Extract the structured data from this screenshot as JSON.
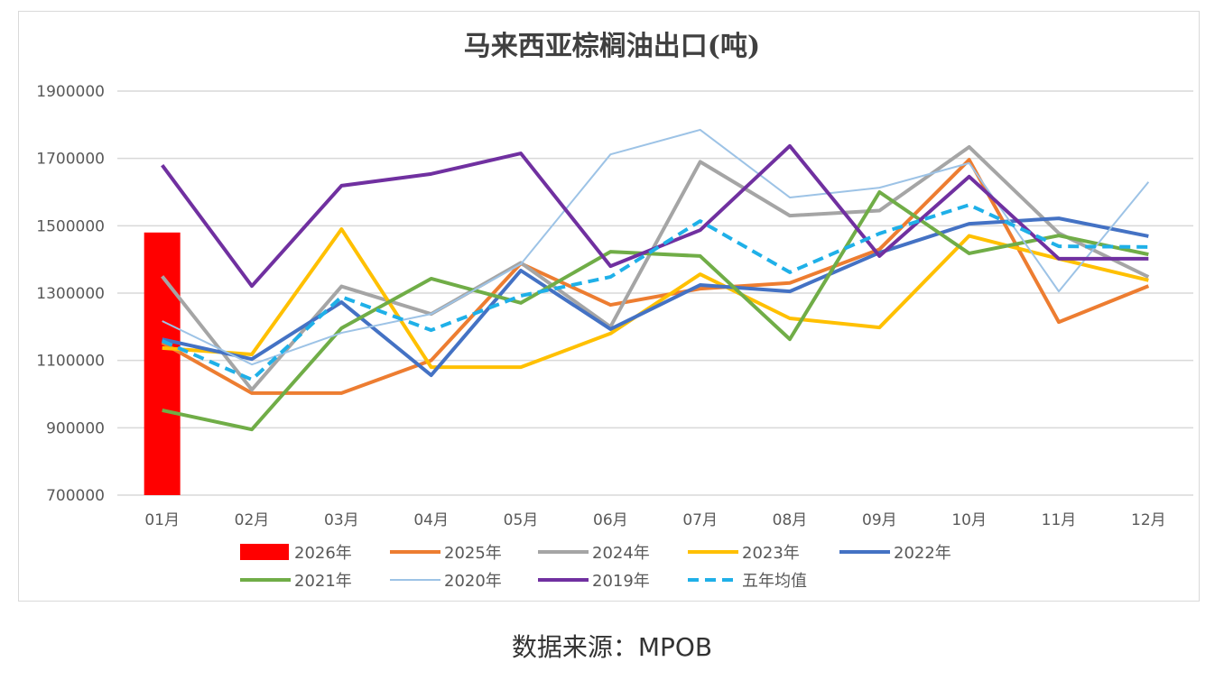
{
  "chart_data": {
    "type": "line",
    "title": "马来西亚棕榈油出口(吨)",
    "xlabel": "",
    "ylabel": "",
    "ylim": [
      700000,
      1900000
    ],
    "yticks": [
      700000,
      900000,
      1100000,
      1300000,
      1500000,
      1700000,
      1900000
    ],
    "ytick_labels": [
      "700000",
      "900000",
      "1100000",
      "1300000",
      "1500000",
      "1700000",
      "1900000"
    ],
    "categories": [
      "01月",
      "02月",
      "03月",
      "04月",
      "05月",
      "06月",
      "07月",
      "08月",
      "09月",
      "10月",
      "11月",
      "12月"
    ],
    "grid": true,
    "legend_position": "bottom",
    "series": [
      {
        "name": "2026年",
        "kind": "bar",
        "color": "#ff0000",
        "values": [
          1480000,
          null,
          null,
          null,
          null,
          null,
          null,
          null,
          null,
          null,
          null,
          null
        ]
      },
      {
        "name": "2025年",
        "kind": "line",
        "color": "#ed7d31",
        "width": 4,
        "values": [
          1153000,
          1003000,
          1003000,
          1100000,
          1388000,
          1265000,
          1313000,
          1330000,
          1430000,
          1696000,
          1214000,
          1321000
        ]
      },
      {
        "name": "2024年",
        "kind": "line",
        "color": "#a5a5a5",
        "width": 4,
        "values": [
          1350000,
          1013000,
          1320000,
          1238000,
          1390000,
          1200000,
          1690000,
          1530000,
          1545000,
          1734000,
          1478000,
          1348000
        ]
      },
      {
        "name": "2023年",
        "kind": "line",
        "color": "#ffc000",
        "width": 4,
        "values": [
          1137000,
          1118000,
          1490000,
          1080000,
          1080000,
          1180000,
          1356000,
          1225000,
          1198000,
          1470000,
          1402000,
          1338000
        ]
      },
      {
        "name": "2022年",
        "kind": "line",
        "color": "#4472c4",
        "width": 4,
        "values": [
          1163000,
          1104000,
          1273000,
          1056000,
          1367000,
          1193000,
          1324000,
          1305000,
          1420000,
          1506000,
          1522000,
          1469000
        ]
      },
      {
        "name": "2021年",
        "kind": "line",
        "color": "#70ad47",
        "width": 4,
        "values": [
          952000,
          895000,
          1196000,
          1343000,
          1271000,
          1423000,
          1410000,
          1163000,
          1600000,
          1418000,
          1471000,
          1415000
        ]
      },
      {
        "name": "2020年",
        "kind": "line",
        "color": "#9dc3e6",
        "width": 2,
        "values": [
          1217000,
          1088000,
          1182000,
          1238000,
          1386000,
          1712000,
          1785000,
          1584000,
          1613000,
          1686000,
          1305000,
          1630000
        ]
      },
      {
        "name": "2019年",
        "kind": "line",
        "color": "#7030a0",
        "width": 4,
        "values": [
          1680000,
          1321000,
          1619000,
          1654000,
          1715000,
          1380000,
          1487000,
          1737000,
          1410000,
          1646000,
          1402000,
          1402000
        ]
      },
      {
        "name": "五年均值",
        "kind": "dashed",
        "color": "#1fb0e8",
        "width": 4,
        "values": [
          1158000,
          1043000,
          1289000,
          1190000,
          1292000,
          1348000,
          1514000,
          1362000,
          1477000,
          1562000,
          1439000,
          1437000
        ]
      }
    ]
  },
  "caption": "数据来源：MPOB"
}
